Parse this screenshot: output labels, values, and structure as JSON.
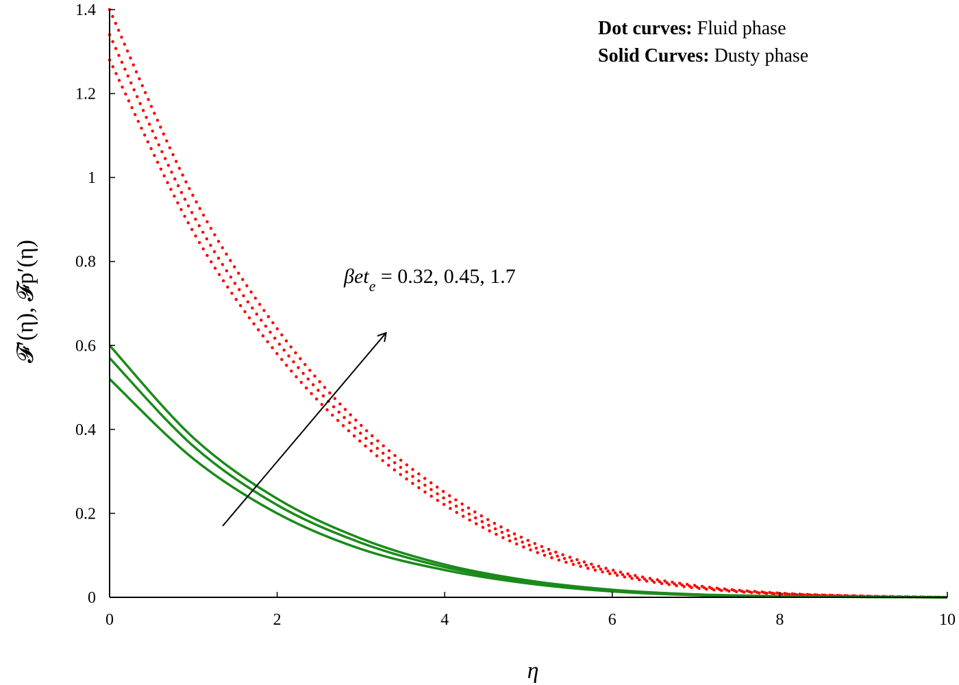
{
  "chart_data": {
    "type": "line",
    "title": "",
    "xlabel": "η",
    "ylabel": "𝓕′(η), 𝓕p′(η)",
    "xlim": [
      0,
      10
    ],
    "ylim": [
      0,
      1.4
    ],
    "xticks": [
      "0",
      "2",
      "4",
      "6",
      "8",
      "10"
    ],
    "yticks": [
      "0",
      "0.2",
      "0.4",
      "0.6",
      "0.8",
      "1",
      "1.2",
      "1.4"
    ],
    "grid": false,
    "legend": {
      "placement": "top-right",
      "lines": [
        {
          "bold": "Dot curves:",
          "text": " Fluid phase"
        },
        {
          "bold": "Solid Curves:",
          "text": " Dusty phase"
        }
      ]
    },
    "annotation": {
      "symbol": "βet",
      "subscript": "e",
      "text": " = 0.32, 0.45, 1.7",
      "arrow_from": [
        1.35,
        0.17
      ],
      "arrow_to": [
        3.3,
        0.63
      ]
    },
    "colors": {
      "fluid": "#ff0000",
      "dusty": "#1a8a1a",
      "axis": "#000000"
    },
    "series": [
      {
        "group": "fluid",
        "style": "dotted",
        "x": [
          0,
          1,
          2,
          3,
          4,
          5,
          6,
          7,
          8,
          9,
          10
        ],
        "y": [
          1.28,
          0.87,
          0.58,
          0.37,
          0.22,
          0.115,
          0.055,
          0.022,
          0.008,
          0.002,
          0
        ]
      },
      {
        "group": "fluid",
        "style": "dotted",
        "x": [
          0,
          1,
          2,
          3,
          4,
          5,
          6,
          7,
          8,
          9,
          10
        ],
        "y": [
          1.34,
          0.91,
          0.61,
          0.39,
          0.235,
          0.125,
          0.06,
          0.025,
          0.009,
          0.003,
          0
        ]
      },
      {
        "group": "fluid",
        "style": "dotted",
        "x": [
          0,
          1,
          2,
          3,
          4,
          5,
          6,
          7,
          8,
          9,
          10
        ],
        "y": [
          1.4,
          0.955,
          0.64,
          0.41,
          0.25,
          0.135,
          0.065,
          0.028,
          0.01,
          0.003,
          0
        ]
      },
      {
        "group": "dusty",
        "style": "solid",
        "x": [
          0,
          1,
          2,
          3,
          4,
          5,
          6,
          7,
          8,
          9,
          10
        ],
        "y": [
          0.52,
          0.33,
          0.2,
          0.115,
          0.065,
          0.033,
          0.014,
          0.005,
          0.002,
          0.001,
          0
        ]
      },
      {
        "group": "dusty",
        "style": "solid",
        "x": [
          0,
          1,
          2,
          3,
          4,
          5,
          6,
          7,
          8,
          9,
          10
        ],
        "y": [
          0.57,
          0.36,
          0.22,
          0.13,
          0.072,
          0.037,
          0.016,
          0.006,
          0.002,
          0.001,
          0
        ]
      },
      {
        "group": "dusty",
        "style": "solid",
        "x": [
          0,
          1,
          2,
          3,
          4,
          5,
          6,
          7,
          8,
          9,
          10
        ],
        "y": [
          0.6,
          0.38,
          0.235,
          0.14,
          0.078,
          0.04,
          0.018,
          0.007,
          0.003,
          0.001,
          0
        ]
      }
    ]
  }
}
